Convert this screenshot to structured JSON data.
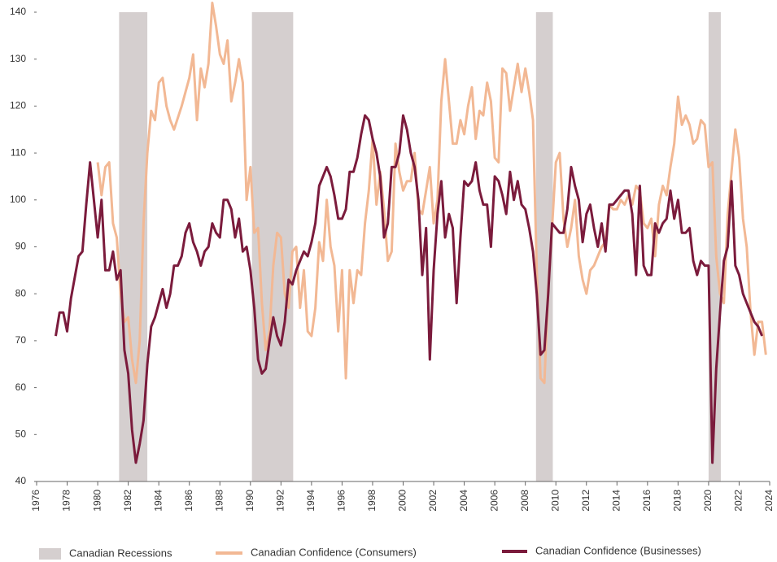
{
  "chart_data": {
    "type": "line",
    "xlim": [
      1976,
      2024
    ],
    "xticks": [
      1976,
      1978,
      1980,
      1982,
      1984,
      1986,
      1988,
      1990,
      1992,
      1994,
      1996,
      1998,
      2000,
      2002,
      2004,
      2006,
      2008,
      2010,
      2012,
      2014,
      2016,
      2018,
      2020,
      2022,
      2024
    ],
    "ylim": [
      40,
      140
    ],
    "yticks": [
      40,
      50,
      60,
      70,
      80,
      90,
      100,
      110,
      120,
      130,
      140
    ],
    "recessions": {
      "name": "Canadian Recessions",
      "color": "#d5cfcf",
      "spans": [
        [
          1981.4,
          1983.25
        ],
        [
          1990.1,
          1992.8
        ],
        [
          2008.7,
          2009.8
        ],
        [
          2020.0,
          2020.8
        ]
      ]
    },
    "series": [
      {
        "name": "Canadian Confidence (Consumers)",
        "color": "#f2b894",
        "x": [
          1980.0,
          1980.25,
          1980.5,
          1980.75,
          1981.0,
          1981.25,
          1981.5,
          1981.75,
          1982.0,
          1982.25,
          1982.5,
          1982.75,
          1983.0,
          1983.25,
          1983.5,
          1983.75,
          1984.0,
          1984.25,
          1984.5,
          1984.75,
          1985.0,
          1985.5,
          1986.0,
          1986.25,
          1986.5,
          1986.75,
          1987.0,
          1987.25,
          1987.5,
          1987.75,
          1988.0,
          1988.25,
          1988.5,
          1988.75,
          1989.0,
          1989.25,
          1989.5,
          1989.75,
          1990.0,
          1990.25,
          1990.5,
          1990.75,
          1991.0,
          1991.25,
          1991.5,
          1991.75,
          1992.0,
          1992.25,
          1992.5,
          1992.75,
          1993.0,
          1993.25,
          1993.5,
          1993.75,
          1994.0,
          1994.25,
          1994.5,
          1994.75,
          1995.0,
          1995.25,
          1995.5,
          1995.75,
          1996.0,
          1996.25,
          1996.5,
          1996.75,
          1997.0,
          1997.25,
          1997.5,
          1997.75,
          1998.0,
          1998.25,
          1998.5,
          1998.75,
          1999.0,
          1999.25,
          1999.5,
          1999.75,
          2000.0,
          2000.25,
          2000.5,
          2000.75,
          2001.0,
          2001.25,
          2001.5,
          2001.75,
          2002.0,
          2002.25,
          2002.5,
          2002.75,
          2003.0,
          2003.25,
          2003.5,
          2003.75,
          2004.0,
          2004.25,
          2004.5,
          2004.75,
          2005.0,
          2005.25,
          2005.5,
          2005.75,
          2006.0,
          2006.25,
          2006.5,
          2006.75,
          2007.0,
          2007.25,
          2007.5,
          2007.75,
          2008.0,
          2008.25,
          2008.5,
          2008.75,
          2009.0,
          2009.25,
          2009.5,
          2009.75,
          2010.0,
          2010.25,
          2010.5,
          2010.75,
          2011.0,
          2011.25,
          2011.5,
          2011.75,
          2012.0,
          2012.25,
          2012.5,
          2012.75,
          2013.0,
          2013.25,
          2013.5,
          2013.75,
          2014.0,
          2014.25,
          2014.5,
          2014.75,
          2015.0,
          2015.25,
          2015.5,
          2015.75,
          2016.0,
          2016.25,
          2016.5,
          2016.75,
          2017.0,
          2017.25,
          2017.5,
          2017.75,
          2018.0,
          2018.25,
          2018.5,
          2018.75,
          2019.0,
          2019.25,
          2019.5,
          2019.75,
          2020.0,
          2020.25,
          2020.5,
          2020.75,
          2021.0,
          2021.25,
          2021.5,
          2021.75,
          2022.0,
          2022.25,
          2022.5,
          2022.75,
          2023.0,
          2023.25,
          2023.5,
          2023.75
        ],
        "values": [
          108,
          101,
          107,
          108,
          95,
          92,
          80,
          74,
          75,
          66,
          61,
          70,
          95,
          110,
          119,
          117,
          125,
          126,
          120,
          117,
          115,
          120,
          126,
          131,
          117,
          128,
          124,
          129,
          142,
          137,
          131,
          129,
          134,
          121,
          125,
          130,
          125,
          100,
          107,
          93,
          94,
          78,
          68,
          72,
          86,
          93,
          92,
          80,
          77,
          89,
          90,
          77,
          85,
          72,
          71,
          77,
          91,
          87,
          100,
          90,
          86,
          72,
          85,
          62,
          85,
          78,
          85,
          84,
          95,
          102,
          113,
          99,
          106,
          98,
          87,
          89,
          112,
          106,
          102,
          104,
          104,
          110,
          98,
          97,
          102,
          107,
          95,
          100,
          121,
          130,
          121,
          112,
          112,
          117,
          114,
          120,
          124,
          113,
          119,
          118,
          125,
          121,
          109,
          108,
          128,
          127,
          119,
          124,
          129,
          123,
          128,
          123,
          117,
          85,
          62,
          61,
          81,
          94,
          108,
          110,
          96,
          90,
          94,
          100,
          88,
          83,
          80,
          85,
          86,
          88,
          90,
          91,
          99,
          98,
          98,
          100,
          99,
          101,
          99,
          103,
          102,
          95,
          94,
          96,
          88,
          99,
          103,
          101,
          107,
          112,
          122,
          116,
          118,
          116,
          112,
          113,
          117,
          116,
          107,
          108,
          88,
          80,
          78,
          97,
          106,
          115,
          109,
          96,
          90,
          76,
          67,
          74,
          74,
          67
        ]
      },
      {
        "name": "Canadian Confidence (Businesses)",
        "color": "#7b1b3c",
        "x": [
          1977.25,
          1977.5,
          1977.75,
          1978.0,
          1978.25,
          1978.75,
          1979.0,
          1979.25,
          1979.5,
          1979.75,
          1980.0,
          1980.25,
          1980.5,
          1980.75,
          1981.0,
          1981.25,
          1981.5,
          1981.75,
          1982.0,
          1982.25,
          1982.5,
          1982.75,
          1983.0,
          1983.25,
          1983.5,
          1983.75,
          1984.0,
          1984.25,
          1984.5,
          1984.75,
          1985.0,
          1985.25,
          1985.5,
          1985.75,
          1986.0,
          1986.25,
          1986.5,
          1986.75,
          1987.0,
          1987.25,
          1987.5,
          1987.75,
          1988.0,
          1988.25,
          1988.5,
          1988.75,
          1989.0,
          1989.25,
          1989.5,
          1989.75,
          1990.0,
          1990.25,
          1990.5,
          1990.75,
          1991.0,
          1991.25,
          1991.5,
          1991.75,
          1992.0,
          1992.25,
          1992.5,
          1992.75,
          1993.0,
          1993.25,
          1993.5,
          1993.75,
          1994.0,
          1994.25,
          1994.5,
          1994.75,
          1995.0,
          1995.25,
          1995.5,
          1995.75,
          1996.0,
          1996.25,
          1996.5,
          1996.75,
          1997.0,
          1997.25,
          1997.5,
          1997.75,
          1998.0,
          1998.25,
          1998.5,
          1998.75,
          1999.0,
          1999.25,
          1999.5,
          1999.75,
          2000.0,
          2000.25,
          2000.5,
          2000.75,
          2001.0,
          2001.25,
          2001.5,
          2001.75,
          2002.0,
          2002.25,
          2002.5,
          2002.75,
          2003.0,
          2003.25,
          2003.5,
          2003.75,
          2004.0,
          2004.25,
          2004.5,
          2004.75,
          2005.0,
          2005.25,
          2005.5,
          2005.75,
          2006.0,
          2006.25,
          2006.5,
          2006.75,
          2007.0,
          2007.25,
          2007.5,
          2007.75,
          2008.0,
          2008.25,
          2008.5,
          2008.75,
          2009.0,
          2009.25,
          2009.5,
          2009.75,
          2010.0,
          2010.25,
          2010.5,
          2010.75,
          2011.0,
          2011.25,
          2011.5,
          2011.75,
          2012.0,
          2012.25,
          2012.5,
          2012.75,
          2013.0,
          2013.25,
          2013.5,
          2013.75,
          2014.0,
          2014.25,
          2014.5,
          2014.75,
          2015.0,
          2015.25,
          2015.5,
          2015.75,
          2016.0,
          2016.25,
          2016.5,
          2016.75,
          2017.0,
          2017.25,
          2017.5,
          2017.75,
          2018.0,
          2018.25,
          2018.5,
          2018.75,
          2019.0,
          2019.25,
          2019.5,
          2019.75,
          2020.0,
          2020.25,
          2020.5,
          2020.75,
          2021.0,
          2021.25,
          2021.5,
          2021.75,
          2022.0,
          2022.25,
          2022.5,
          2022.75,
          2023.0,
          2023.25,
          2023.5
        ],
        "values": [
          71,
          76,
          76,
          72,
          79,
          88,
          89,
          99,
          108,
          100,
          92,
          100,
          85,
          85,
          89,
          83,
          85,
          68,
          63,
          51,
          44,
          48,
          53,
          65,
          73,
          75,
          78,
          81,
          77,
          80,
          86,
          86,
          88,
          93,
          95,
          91,
          89,
          86,
          89,
          90,
          95,
          93,
          92,
          100,
          100,
          98,
          92,
          96,
          89,
          90,
          85,
          77,
          66,
          63,
          64,
          70,
          75,
          71,
          69,
          74,
          83,
          82,
          85,
          87,
          89,
          88,
          91,
          95,
          103,
          105,
          107,
          105,
          101,
          96,
          96,
          98,
          106,
          106,
          109,
          114,
          118,
          117,
          113,
          110,
          105,
          92,
          95,
          107,
          107,
          110,
          118,
          115,
          110,
          107,
          100,
          84,
          94,
          66,
          85,
          97,
          104,
          92,
          97,
          94,
          78,
          92,
          104,
          103,
          104,
          108,
          102,
          99,
          99,
          90,
          105,
          104,
          101,
          97,
          106,
          100,
          104,
          99,
          98,
          94,
          89,
          80,
          67,
          68,
          80,
          95,
          94,
          93,
          93,
          98,
          107,
          103,
          100,
          91,
          97,
          99,
          94,
          90,
          95,
          89,
          99,
          99,
          100,
          101,
          102,
          102,
          97,
          84,
          103,
          86,
          84,
          84,
          95,
          93,
          95,
          96,
          102,
          96,
          100,
          93,
          93,
          94,
          87,
          84,
          87,
          86,
          86,
          44,
          64,
          76,
          87,
          90,
          104,
          86,
          84,
          80,
          78,
          76,
          74,
          73,
          71
        ]
      }
    ]
  }
}
